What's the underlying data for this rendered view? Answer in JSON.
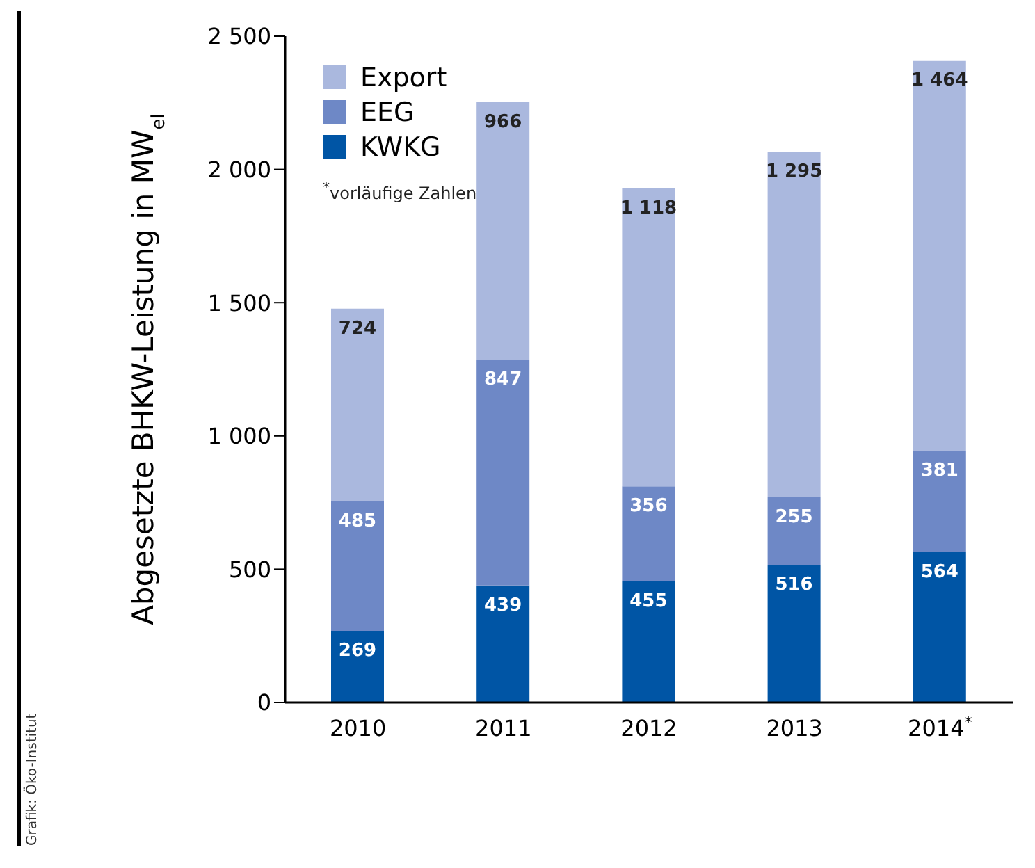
{
  "chart_data": {
    "type": "bar",
    "stacked": true,
    "ylabel": "Abgesetzte BHKW-Leistung in MW$_{el}$",
    "categories": [
      "2010",
      "2011",
      "2012",
      "2013",
      "2014$^{*}$"
    ],
    "series": [
      {
        "name": "KWKG",
        "color": "#0055a5",
        "values": [
          269,
          439,
          455,
          516,
          564
        ],
        "value_labels": [
          "269",
          "439",
          "455",
          "516",
          "564"
        ]
      },
      {
        "name": "EEG",
        "color": "#6e88c6",
        "values": [
          485,
          847,
          356,
          255,
          381
        ],
        "value_labels": [
          "485",
          "847",
          "356",
          "255",
          "381"
        ]
      },
      {
        "name": "Export",
        "color": "#aab8de",
        "values": [
          724,
          966,
          1118,
          1295,
          1464
        ],
        "value_labels": [
          "724",
          "966",
          "1 118",
          "1 295",
          "1 464"
        ]
      }
    ],
    "ylim": [
      0,
      2500
    ],
    "yticks": [
      0,
      500,
      {
        "value": 1000,
        "label": "1 000"
      },
      {
        "value": 1500,
        "label": "1 500"
      },
      {
        "value": 2000,
        "label": "2 000"
      },
      {
        "value": 2500,
        "label": "2 500"
      }
    ],
    "grid": false,
    "legend": "top left",
    "annotations": [
      "$^{*}$vorläufige Zahlen",
      "Grafik: Öko-Institut"
    ]
  }
}
